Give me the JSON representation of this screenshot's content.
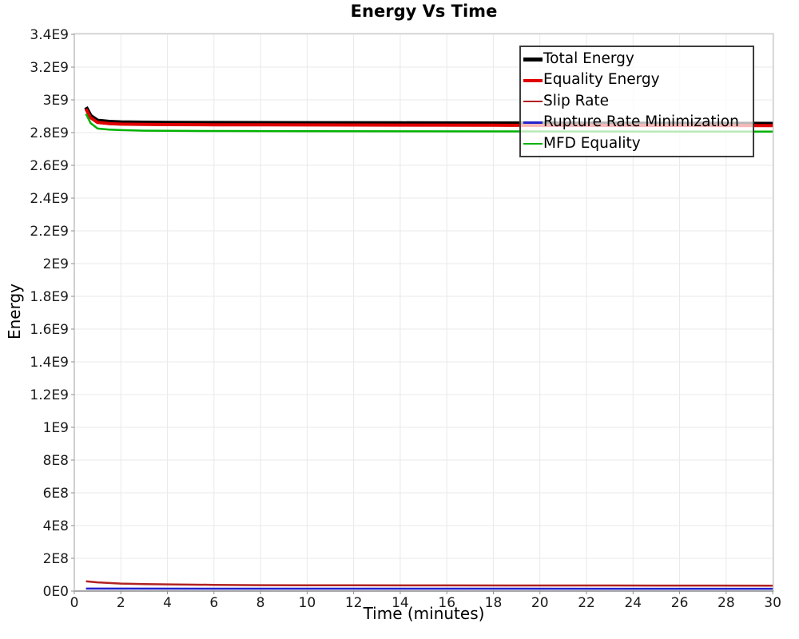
{
  "page": {
    "background": "#ffffff"
  },
  "chart_data": {
    "type": "line",
    "title": "Energy Vs Time",
    "xlabel": "Time (minutes)",
    "ylabel": "Energy",
    "xlim": [
      0,
      30.03
    ],
    "ylim": [
      0,
      3405000000
    ],
    "grid": true,
    "legend_position": "top-right",
    "x_ticks": [
      {
        "v": 0,
        "label": "0"
      },
      {
        "v": 2,
        "label": "2"
      },
      {
        "v": 4,
        "label": "4"
      },
      {
        "v": 6,
        "label": "6"
      },
      {
        "v": 8,
        "label": "8"
      },
      {
        "v": 10,
        "label": "10"
      },
      {
        "v": 12,
        "label": "12"
      },
      {
        "v": 14,
        "label": "14"
      },
      {
        "v": 16,
        "label": "16"
      },
      {
        "v": 18,
        "label": "18"
      },
      {
        "v": 20,
        "label": "20"
      },
      {
        "v": 22,
        "label": "22"
      },
      {
        "v": 24,
        "label": "24"
      },
      {
        "v": 26,
        "label": "26"
      },
      {
        "v": 28,
        "label": "28"
      },
      {
        "v": 30,
        "label": "30"
      }
    ],
    "y_ticks": [
      {
        "v": 0,
        "label": "0E0"
      },
      {
        "v": 200000000.0,
        "label": "2E8"
      },
      {
        "v": 400000000.0,
        "label": "4E8"
      },
      {
        "v": 600000000.0,
        "label": "6E8"
      },
      {
        "v": 800000000.0,
        "label": "8E8"
      },
      {
        "v": 1000000000.0,
        "label": "1E9"
      },
      {
        "v": 1200000000.0,
        "label": "1.2E9"
      },
      {
        "v": 1400000000.0,
        "label": "1.4E9"
      },
      {
        "v": 1600000000.0,
        "label": "1.6E9"
      },
      {
        "v": 1800000000.0,
        "label": "1.8E9"
      },
      {
        "v": 2000000000.0,
        "label": "2E9"
      },
      {
        "v": 2200000000.0,
        "label": "2.2E9"
      },
      {
        "v": 2400000000.0,
        "label": "2.4E9"
      },
      {
        "v": 2600000000.0,
        "label": "2.6E9"
      },
      {
        "v": 2800000000.0,
        "label": "2.8E9"
      },
      {
        "v": 3000000000.0,
        "label": "3E9"
      },
      {
        "v": 3200000000.0,
        "label": "3.2E9"
      },
      {
        "v": 3400000000.0,
        "label": "3.4E9"
      }
    ],
    "colors": {
      "grid": "#e9e9e9",
      "plot_border": "#c0c0c0",
      "axis_line": "#8c8c8c",
      "tick_mark": "#8c8c8c",
      "tick_label": "#1a1a1a",
      "legend_border": "#3d3d3d"
    },
    "series": [
      {
        "name": "Total Energy",
        "color": "#000000",
        "width": 5,
        "points": [
          [
            0.5,
            2955000000.0
          ],
          [
            0.7,
            2902000000.0
          ],
          [
            1,
            2873000000.0
          ],
          [
            1.5,
            2866000000.0
          ],
          [
            2,
            2863000000.0
          ],
          [
            3,
            2861000000.0
          ],
          [
            4,
            2860000000.0
          ],
          [
            6,
            2859000000.0
          ],
          [
            8,
            2858500000.0
          ],
          [
            10,
            2858000000.0
          ],
          [
            14,
            2857000000.0
          ],
          [
            18,
            2856000000.0
          ],
          [
            22,
            2855500000.0
          ],
          [
            26,
            2855000000.0
          ],
          [
            30,
            2854000000.0
          ]
        ]
      },
      {
        "name": "Equality Energy",
        "color": "#e00000",
        "width": 4,
        "points": [
          [
            0.5,
            2944000000.0
          ],
          [
            0.7,
            2891000000.0
          ],
          [
            1,
            2862000000.0
          ],
          [
            1.5,
            2855000000.0
          ],
          [
            2,
            2852000000.0
          ],
          [
            3,
            2850000000.0
          ],
          [
            4,
            2849000000.0
          ],
          [
            6,
            2848000000.0
          ],
          [
            8,
            2847500000.0
          ],
          [
            10,
            2847000000.0
          ],
          [
            14,
            2846000000.0
          ],
          [
            18,
            2845000000.0
          ],
          [
            22,
            2844500000.0
          ],
          [
            26,
            2844000000.0
          ],
          [
            30,
            2843000000.0
          ]
        ]
      },
      {
        "name": "Slip Rate",
        "color": "#b22222",
        "width": 2.5,
        "points": [
          [
            0.5,
            60000000.0
          ],
          [
            1,
            53000000.0
          ],
          [
            2,
            46000000.0
          ],
          [
            3,
            43000000.0
          ],
          [
            4,
            41000000.0
          ],
          [
            6,
            38000000.0
          ],
          [
            8,
            36000000.0
          ],
          [
            12,
            35000000.0
          ],
          [
            16,
            34500000.0
          ],
          [
            20,
            34000000.0
          ],
          [
            25,
            33500000.0
          ],
          [
            30,
            33000000.0
          ]
        ]
      },
      {
        "name": "Rupture Rate Minimization",
        "color": "#2222cc",
        "width": 2.5,
        "points": [
          [
            0.5,
            15000000.0
          ],
          [
            10,
            14500000.0
          ],
          [
            30,
            14000000.0
          ]
        ]
      },
      {
        "name": "MFD Equality",
        "color": "#00b200",
        "width": 2.5,
        "points": [
          [
            0.5,
            2915000000.0
          ],
          [
            0.7,
            2858000000.0
          ],
          [
            1,
            2825000000.0
          ],
          [
            1.5,
            2818000000.0
          ],
          [
            2,
            2815000000.0
          ],
          [
            3,
            2812000000.0
          ],
          [
            4,
            2811000000.0
          ],
          [
            6,
            2810000000.0
          ],
          [
            10,
            2809000000.0
          ],
          [
            14,
            2808000000.0
          ],
          [
            18,
            2807500000.0
          ],
          [
            22,
            2807000000.0
          ],
          [
            26,
            2806500000.0
          ],
          [
            30,
            2806000000.0
          ]
        ]
      }
    ]
  }
}
